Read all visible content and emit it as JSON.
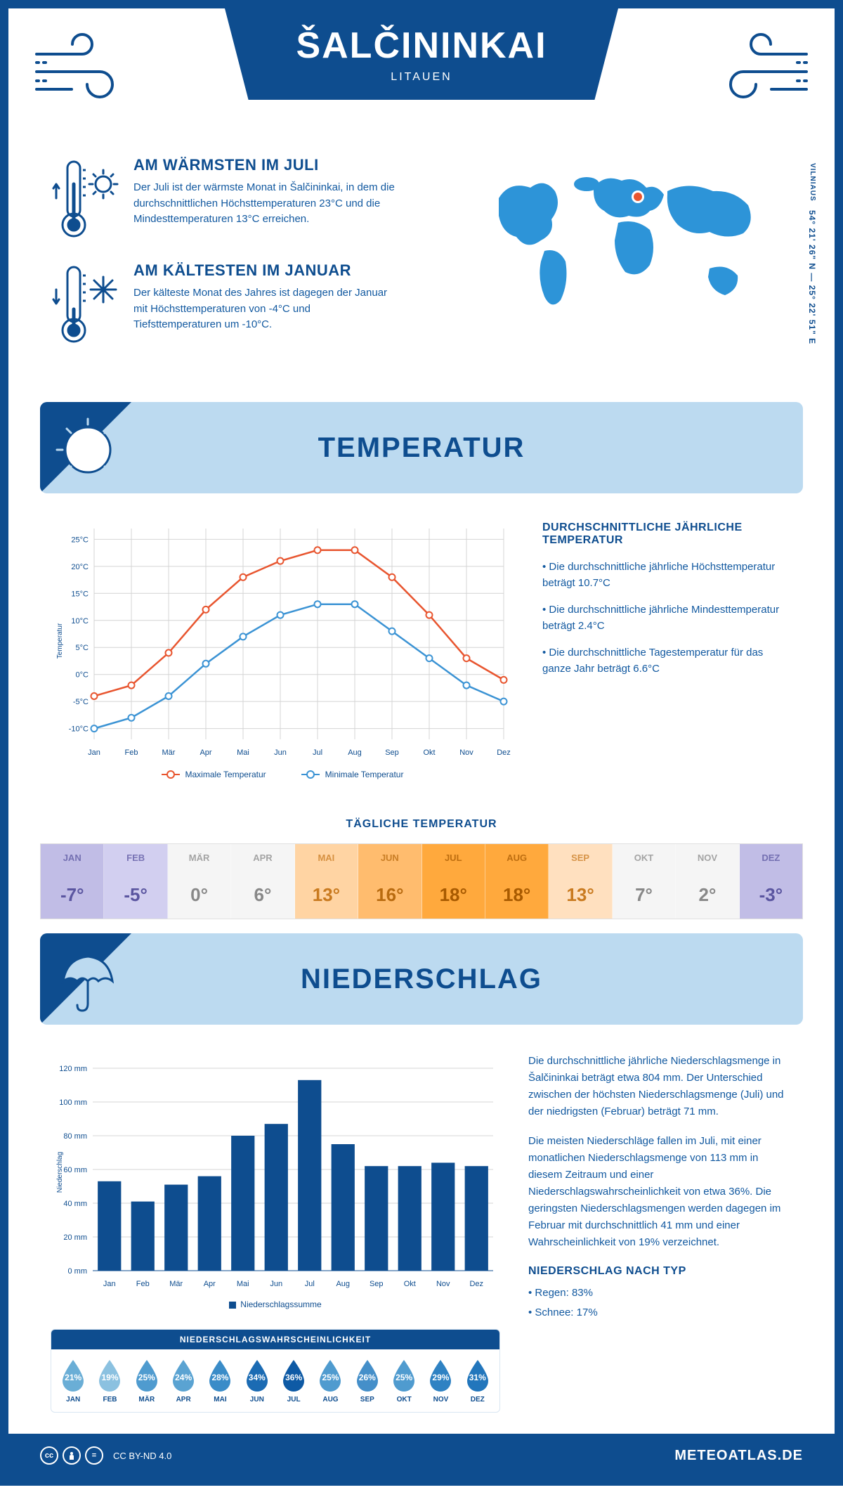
{
  "header": {
    "title": "ŠALČININKAI",
    "subtitle": "LITAUEN",
    "region": "VILNIAUS",
    "coords": "54° 21' 26\" N — 25° 22' 51\" E"
  },
  "facts": {
    "warm": {
      "title": "AM WÄRMSTEN IM JULI",
      "text": "Der Juli ist der wärmste Monat in Šalčininkai, in dem die durchschnittlichen Höchsttemperaturen 23°C und die Mindesttemperaturen 13°C erreichen."
    },
    "cold": {
      "title": "AM KÄLTESTEN IM JANUAR",
      "text": "Der kälteste Monat des Jahres ist dagegen der Januar mit Höchsttemperaturen von -4°C und Tiefsttemperaturen um -10°C."
    }
  },
  "sections": {
    "temp": "TEMPERATUR",
    "precip": "NIEDERSCHLAG"
  },
  "temp_chart": {
    "type": "line",
    "months": [
      "Jan",
      "Feb",
      "Mär",
      "Apr",
      "Mai",
      "Jun",
      "Jul",
      "Aug",
      "Sep",
      "Okt",
      "Nov",
      "Dez"
    ],
    "max": [
      -4,
      -2,
      4,
      12,
      18,
      21,
      23,
      23,
      18,
      11,
      3,
      -1
    ],
    "min": [
      -10,
      -8,
      -4,
      2,
      7,
      11,
      13,
      13,
      8,
      3,
      -2,
      -5
    ],
    "y_ticks": [
      -10,
      -5,
      0,
      5,
      10,
      15,
      20,
      25
    ],
    "y_labels": [
      "-10°C",
      "-5°C",
      "0°C",
      "5°C",
      "10°C",
      "15°C",
      "20°C",
      "25°C"
    ],
    "ylim": [
      -12,
      27
    ],
    "y_axis_label": "Temperatur",
    "max_color": "#e8552f",
    "min_color": "#3b93d4",
    "grid_color": "#d4d4d4",
    "legend_max": "Maximale Temperatur",
    "legend_min": "Minimale Temperatur"
  },
  "temp_text": {
    "heading": "DURCHSCHNITTLICHE JÄHRLICHE TEMPERATUR",
    "b1": "• Die durchschnittliche jährliche Höchsttemperatur beträgt 10.7°C",
    "b2": "• Die durchschnittliche jährliche Mindesttemperatur beträgt 2.4°C",
    "b3": "• Die durchschnittliche Tagestemperatur für das ganze Jahr beträgt 6.6°C"
  },
  "daily": {
    "title": "TÄGLICHE TEMPERATUR",
    "months": [
      "JAN",
      "FEB",
      "MÄR",
      "APR",
      "MAI",
      "JUN",
      "JUL",
      "AUG",
      "SEP",
      "OKT",
      "NOV",
      "DEZ"
    ],
    "values": [
      "-7°",
      "-5°",
      "0°",
      "6°",
      "13°",
      "16°",
      "18°",
      "18°",
      "13°",
      "7°",
      "2°",
      "-3°"
    ],
    "bg": [
      "#c1bde6",
      "#d2cff0",
      "#f5f5f5",
      "#f5f5f5",
      "#ffd4a3",
      "#ffbc6e",
      "#ffa93d",
      "#ffa93d",
      "#ffe0bf",
      "#f5f5f5",
      "#f5f5f5",
      "#c1bde6"
    ],
    "text": [
      "#5a55a0",
      "#5a55a0",
      "#888888",
      "#888888",
      "#c97a1f",
      "#b86a0f",
      "#a85a00",
      "#a85a00",
      "#c97a1f",
      "#888888",
      "#888888",
      "#5a55a0"
    ]
  },
  "precip_chart": {
    "type": "bar",
    "months": [
      "Jan",
      "Feb",
      "Mär",
      "Apr",
      "Mai",
      "Jun",
      "Jul",
      "Aug",
      "Sep",
      "Okt",
      "Nov",
      "Dez"
    ],
    "values": [
      53,
      41,
      51,
      56,
      80,
      87,
      113,
      75,
      62,
      62,
      64,
      62
    ],
    "y_ticks": [
      0,
      20,
      40,
      60,
      80,
      100,
      120
    ],
    "y_labels": [
      "0 mm",
      "20 mm",
      "40 mm",
      "60 mm",
      "80 mm",
      "100 mm",
      "120 mm"
    ],
    "ylim": [
      0,
      125
    ],
    "y_axis_label": "Niederschlag",
    "bar_color": "#0e4d8f",
    "grid_color": "#d4d4d4",
    "legend": "Niederschlagssumme"
  },
  "precip_text": {
    "p1": "Die durchschnittliche jährliche Niederschlagsmenge in Šalčininkai beträgt etwa 804 mm. Der Unterschied zwischen der höchsten Niederschlagsmenge (Juli) und der niedrigsten (Februar) beträgt 71 mm.",
    "p2": "Die meisten Niederschläge fallen im Juli, mit einer monatlichen Niederschlagsmenge von 113 mm in diesem Zeitraum und einer Niederschlagswahrscheinlichkeit von etwa 36%. Die geringsten Niederschlagsmengen werden dagegen im Februar mit durchschnittlich 41 mm und einer Wahrscheinlichkeit von 19% verzeichnet.",
    "type_heading": "NIEDERSCHLAG NACH TYP",
    "type_rain": "• Regen: 83%",
    "type_snow": "• Schnee: 17%"
  },
  "probability": {
    "title": "NIEDERSCHLAGSWAHRSCHEINLICHKEIT",
    "months": [
      "JAN",
      "FEB",
      "MÄR",
      "APR",
      "MAI",
      "JUN",
      "JUL",
      "AUG",
      "SEP",
      "OKT",
      "NOV",
      "DEZ"
    ],
    "values": [
      "21%",
      "19%",
      "25%",
      "24%",
      "28%",
      "34%",
      "36%",
      "25%",
      "26%",
      "25%",
      "29%",
      "31%"
    ],
    "colors": [
      "#6aaed6",
      "#8bc1e0",
      "#4f9bcf",
      "#5aa3d2",
      "#3a8cc8",
      "#1b6bb3",
      "#0e5aa5",
      "#4f9bcf",
      "#458fc9",
      "#4f9bcf",
      "#2f82c3",
      "#2276bc"
    ]
  },
  "footer": {
    "license": "CC BY-ND 4.0",
    "site": "METEOATLAS.DE"
  },
  "colors": {
    "primary": "#0e4d8f",
    "light_blue": "#bcdaf0",
    "text_blue": "#1259a0",
    "map_blue": "#2d94d8"
  }
}
